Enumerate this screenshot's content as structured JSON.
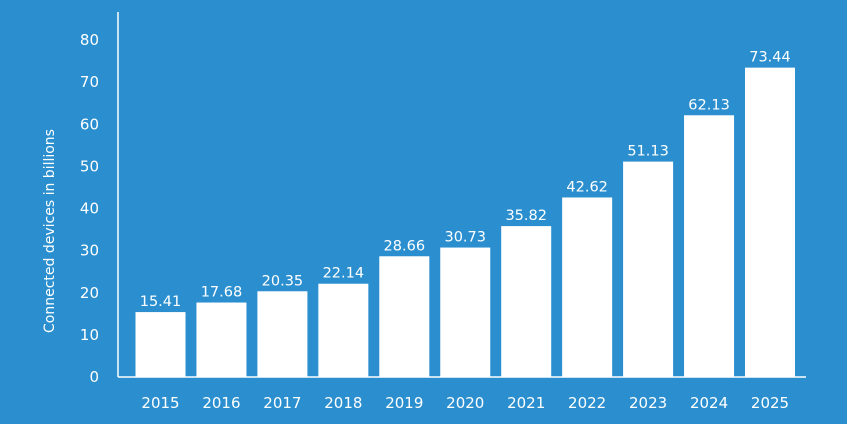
{
  "colors": {
    "background": "#2B8FCF",
    "bar": "#FFFFFF",
    "text": "#FFFFFF",
    "axis": "#FFFFFF"
  },
  "chart_data": {
    "type": "bar",
    "title": "",
    "xlabel": "",
    "ylabel": "Connected devices in billions",
    "ylim": [
      0,
      80
    ],
    "yticks": [
      0,
      10,
      20,
      30,
      40,
      50,
      60,
      70,
      80
    ],
    "grid": false,
    "categories": [
      "2015",
      "2016",
      "2017",
      "2018",
      "2019",
      "2020",
      "2021",
      "2022",
      "2023",
      "2024",
      "2025"
    ],
    "values": [
      15.41,
      17.68,
      20.35,
      22.14,
      28.66,
      30.73,
      35.82,
      42.62,
      51.13,
      62.13,
      73.44
    ],
    "data_labels": [
      "15.41",
      "17.68",
      "20.35",
      "22.14",
      "28.66",
      "30.73",
      "35.82",
      "42.62",
      "51.13",
      "62.13",
      "73.44"
    ]
  }
}
